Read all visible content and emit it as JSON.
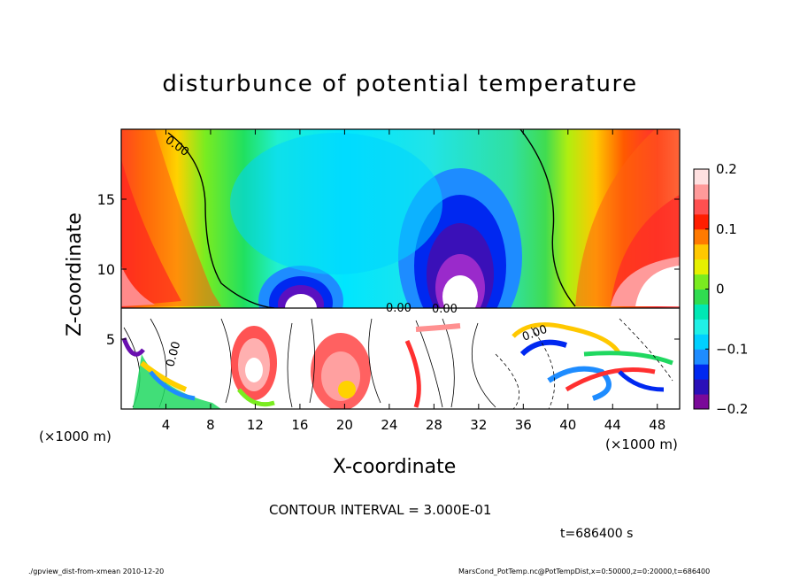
{
  "chart_data": {
    "type": "heatmap",
    "title": "disturbunce of potential temperature",
    "xlabel": "X-coordinate",
    "ylabel": "Z-coordinate",
    "xlim": [
      0,
      50
    ],
    "ylim": [
      0,
      20
    ],
    "x_ticks": [
      4,
      8,
      12,
      16,
      20,
      24,
      28,
      32,
      36,
      40,
      44,
      48
    ],
    "y_ticks": [
      5,
      10,
      15
    ],
    "x_unit": "(×1000 m)",
    "y_unit": "(×1000 m)",
    "colorbar": {
      "range": [
        -0.2,
        0.2
      ],
      "ticks": [
        {
          "value": 0.2,
          "label": "0.2"
        },
        {
          "value": 0.1,
          "label": "0.1"
        },
        {
          "value": 0,
          "label": "0"
        },
        {
          "value": -0.1,
          "label": "−0.1"
        },
        {
          "value": -0.2,
          "label": "−0.2"
        }
      ],
      "colors": [
        "#7a0a99",
        "#2a10b8",
        "#0028f0",
        "#1e8cff",
        "#00d0ff",
        "#20f0e6",
        "#00e8b4",
        "#30dc50",
        "#7aec20",
        "#e6f000",
        "#ffc800",
        "#ff7a00",
        "#ff1e00",
        "#ff5050",
        "#ff9a9a",
        "#ffe0e0"
      ]
    },
    "contour_labels": [
      "0.00",
      "0.00",
      "0.00",
      "0.00",
      "0.00"
    ],
    "contour_interval": "CONTOUR INTERVAL = 3.000E-01",
    "time_label": "t=686400 s"
  },
  "footer": {
    "left": "./gpview_dist-from-xmean  2010-12-20",
    "right": "MarsCond_PotTemp.nc@PotTempDist,x=0:50000,z=0:20000,t=686400"
  }
}
